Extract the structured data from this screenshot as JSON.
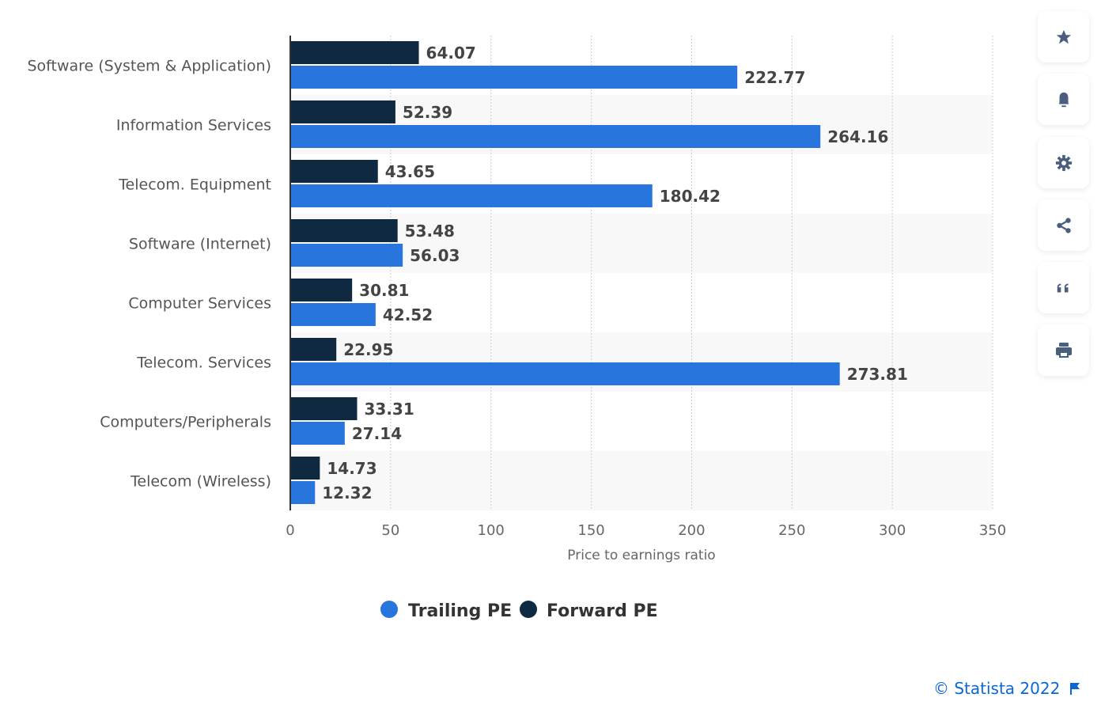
{
  "chart_data": {
    "type": "bar",
    "orientation": "horizontal",
    "categories": [
      "Software (System & Application)",
      "Information Services",
      "Telecom. Equipment",
      "Software (Internet)",
      "Computer Services",
      "Telecom. Services",
      "Computers/Peripherals",
      "Telecom (Wireless)"
    ],
    "series": [
      {
        "name": "Forward PE",
        "color": "#0f2a40",
        "values": [
          64.07,
          52.39,
          43.65,
          53.48,
          30.81,
          22.95,
          33.31,
          14.73
        ]
      },
      {
        "name": "Trailing PE",
        "color": "#2876dd",
        "values": [
          222.77,
          264.16,
          180.42,
          56.03,
          42.52,
          273.81,
          27.14,
          12.32
        ]
      }
    ],
    "value_labels": {
      "forward": [
        "64.07",
        "52.39",
        "43.65",
        "53.48",
        "30.81",
        "22.95",
        "33.31",
        "14.73"
      ],
      "trailing": [
        "222.77",
        "264.16",
        "180.42",
        "56.03",
        "42.52",
        "273.81",
        "27.14",
        "12.32"
      ]
    },
    "xlabel": "Price to earnings ratio",
    "xlim": [
      0,
      350
    ],
    "xticks": [
      "0",
      "50",
      "100",
      "150",
      "200",
      "250",
      "300",
      "350"
    ],
    "grid": true,
    "legend_position": "bottom",
    "legend": [
      "Trailing PE",
      "Forward PE"
    ]
  },
  "sidebar": {
    "icons": [
      "star-icon",
      "bell-icon",
      "gear-icon",
      "share-icon",
      "quote-icon",
      "print-icon"
    ],
    "icon_color": "#4a5f7e"
  },
  "footer": {
    "credit": "© Statista 2022",
    "link_color": "#0b66d6"
  }
}
